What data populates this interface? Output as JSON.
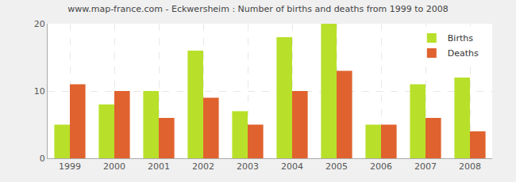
{
  "chart_data": {
    "type": "bar",
    "title": "www.map-france.com - Eckwersheim : Number of births and deaths from 1999 to 2008",
    "categories": [
      "1999",
      "2000",
      "2001",
      "2002",
      "2003",
      "2004",
      "2005",
      "2006",
      "2007",
      "2008"
    ],
    "series": [
      {
        "name": "Births",
        "color": "#b8e02a",
        "values": [
          5,
          8,
          10,
          16,
          7,
          18,
          20,
          5,
          11,
          12
        ]
      },
      {
        "name": "Deaths",
        "color": "#e0622e",
        "values": [
          11,
          10,
          6,
          9,
          5,
          10,
          13,
          5,
          6,
          4
        ]
      }
    ],
    "ylim": [
      0,
      20
    ],
    "yticks": [
      0,
      10,
      20
    ],
    "grid": true,
    "legend": "top right"
  }
}
